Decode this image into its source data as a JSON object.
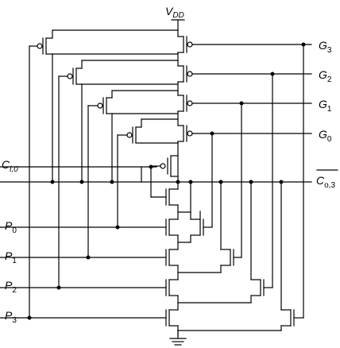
{
  "supply": {
    "name": "V",
    "sub": "DD"
  },
  "outputs": [
    {
      "name": "G",
      "sub": "3"
    },
    {
      "name": "G",
      "sub": "2"
    },
    {
      "name": "G",
      "sub": "1"
    },
    {
      "name": "G",
      "sub": "0"
    }
  ],
  "carry_in": {
    "name": "C",
    "sub": "i,0"
  },
  "carry_out": {
    "name": "C",
    "sub": "o,3"
  },
  "inputs": [
    {
      "name": "P",
      "sub": "0"
    },
    {
      "name": "P",
      "sub": "1"
    },
    {
      "name": "P",
      "sub": "2"
    },
    {
      "name": "P",
      "sub": "3"
    }
  ]
}
